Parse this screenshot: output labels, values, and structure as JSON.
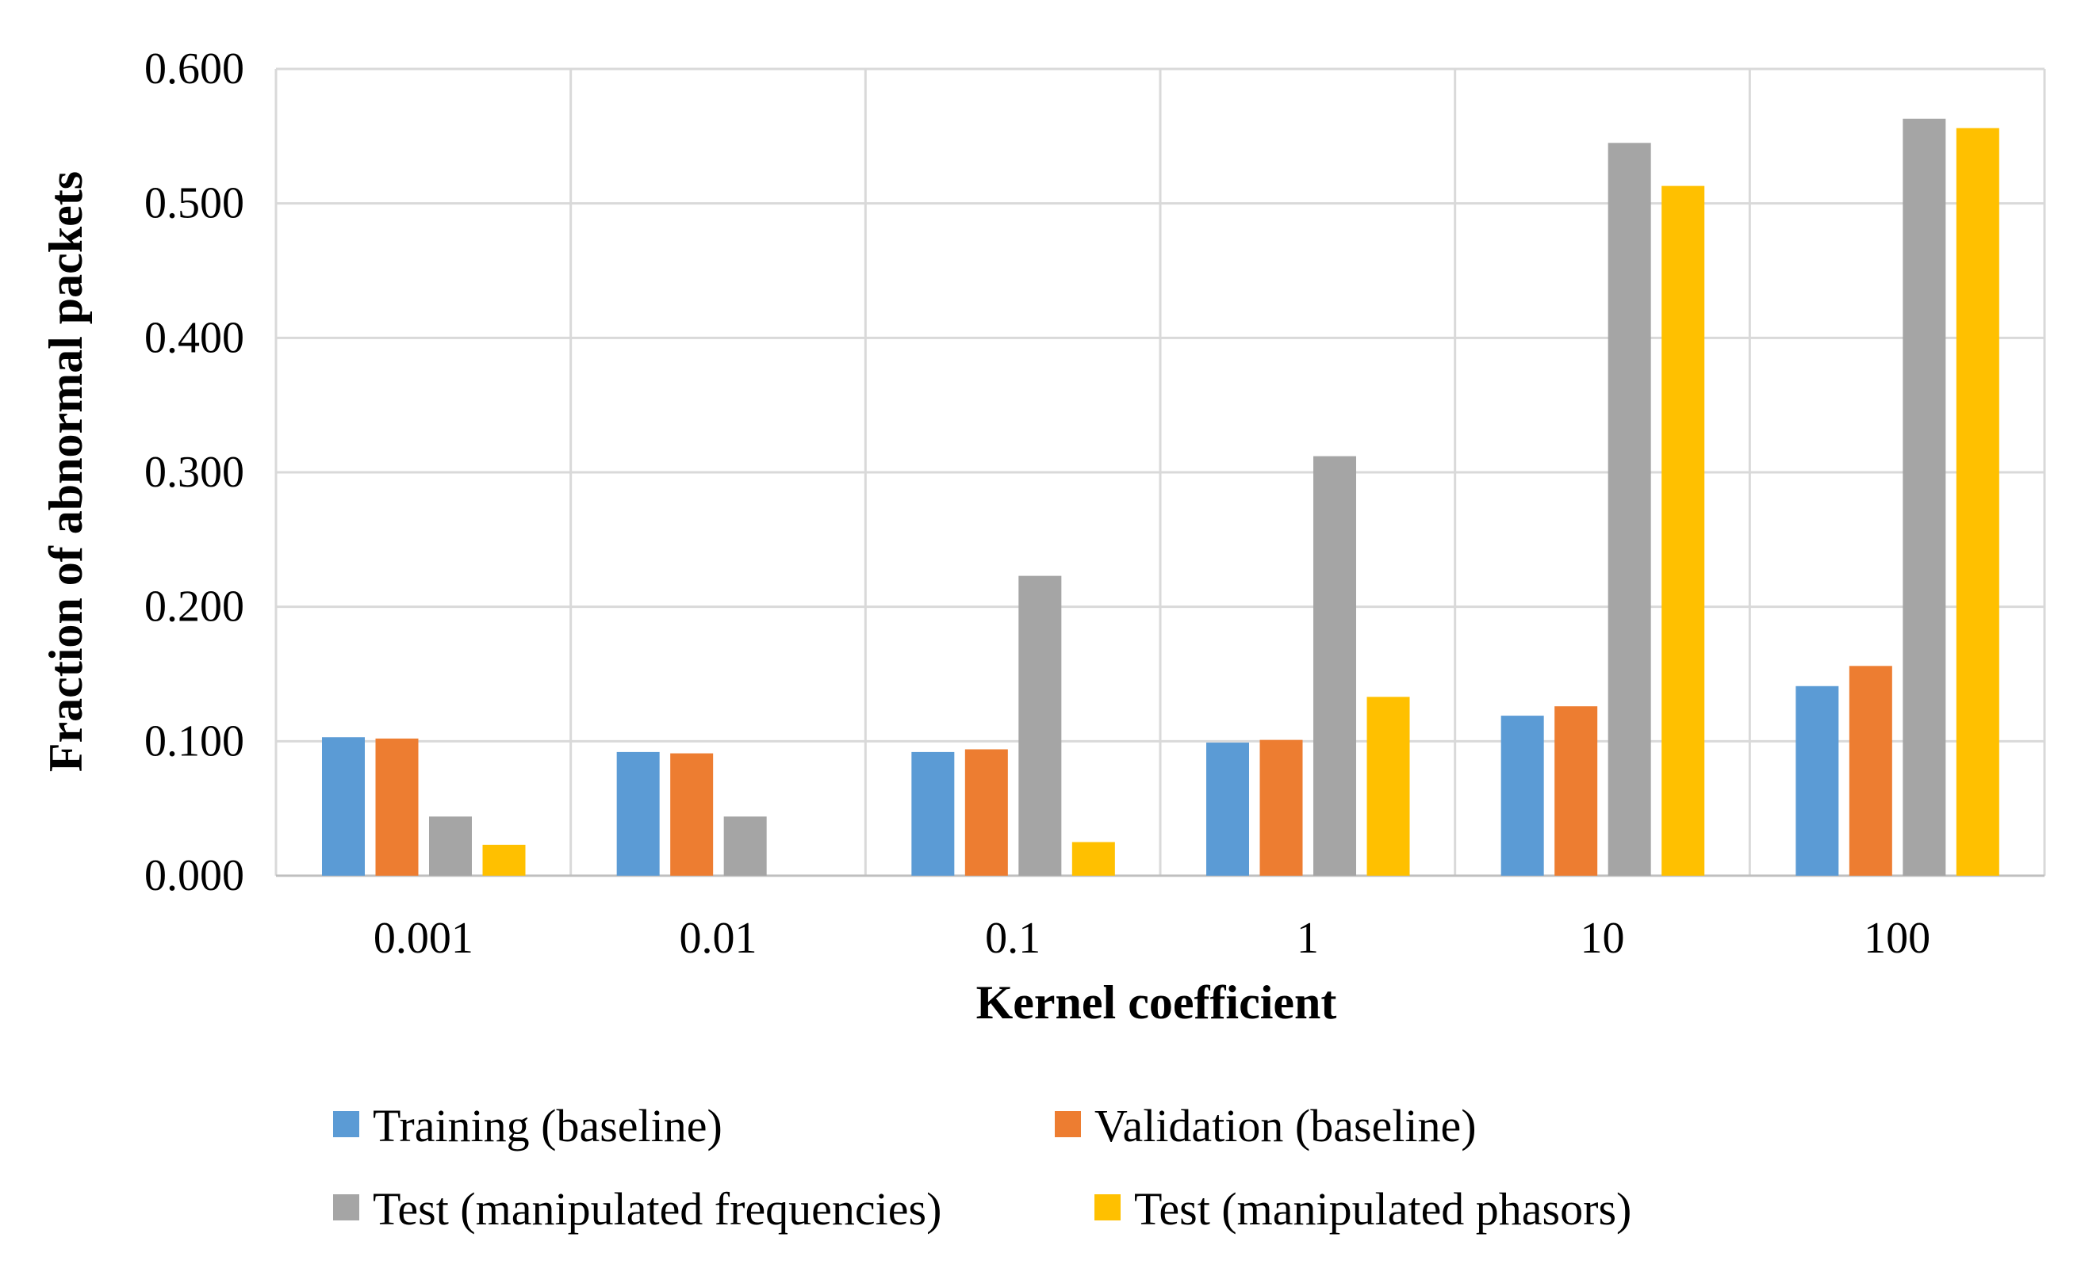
{
  "chart_data": {
    "type": "bar",
    "title": "",
    "xlabel": "Kernel coefficient",
    "ylabel": "Fraction of abnormal packets",
    "ylim": [
      0,
      0.6
    ],
    "yticks": [
      "0.000",
      "0.100",
      "0.200",
      "0.300",
      "0.400",
      "0.500",
      "0.600"
    ],
    "grid": true,
    "legend_position": "bottom",
    "categories": [
      "0.001",
      "0.01",
      "0.1",
      "1",
      "10",
      "100"
    ],
    "series": [
      {
        "name": "Training (baseline)",
        "color": "#5B9BD5",
        "values": [
          0.103,
          0.092,
          0.092,
          0.099,
          0.119,
          0.141
        ]
      },
      {
        "name": "Validation (baseline)",
        "color": "#ED7D31",
        "values": [
          0.102,
          0.091,
          0.094,
          0.101,
          0.126,
          0.156
        ]
      },
      {
        "name": "Test (manipulated frequencies)",
        "color": "#A5A5A5",
        "values": [
          0.044,
          0.044,
          0.223,
          0.312,
          0.545,
          0.563
        ]
      },
      {
        "name": "Test (manipulated phasors)",
        "color": "#FFC000",
        "values": [
          0.023,
          0.0,
          0.025,
          0.133,
          0.513,
          0.556
        ]
      }
    ]
  }
}
